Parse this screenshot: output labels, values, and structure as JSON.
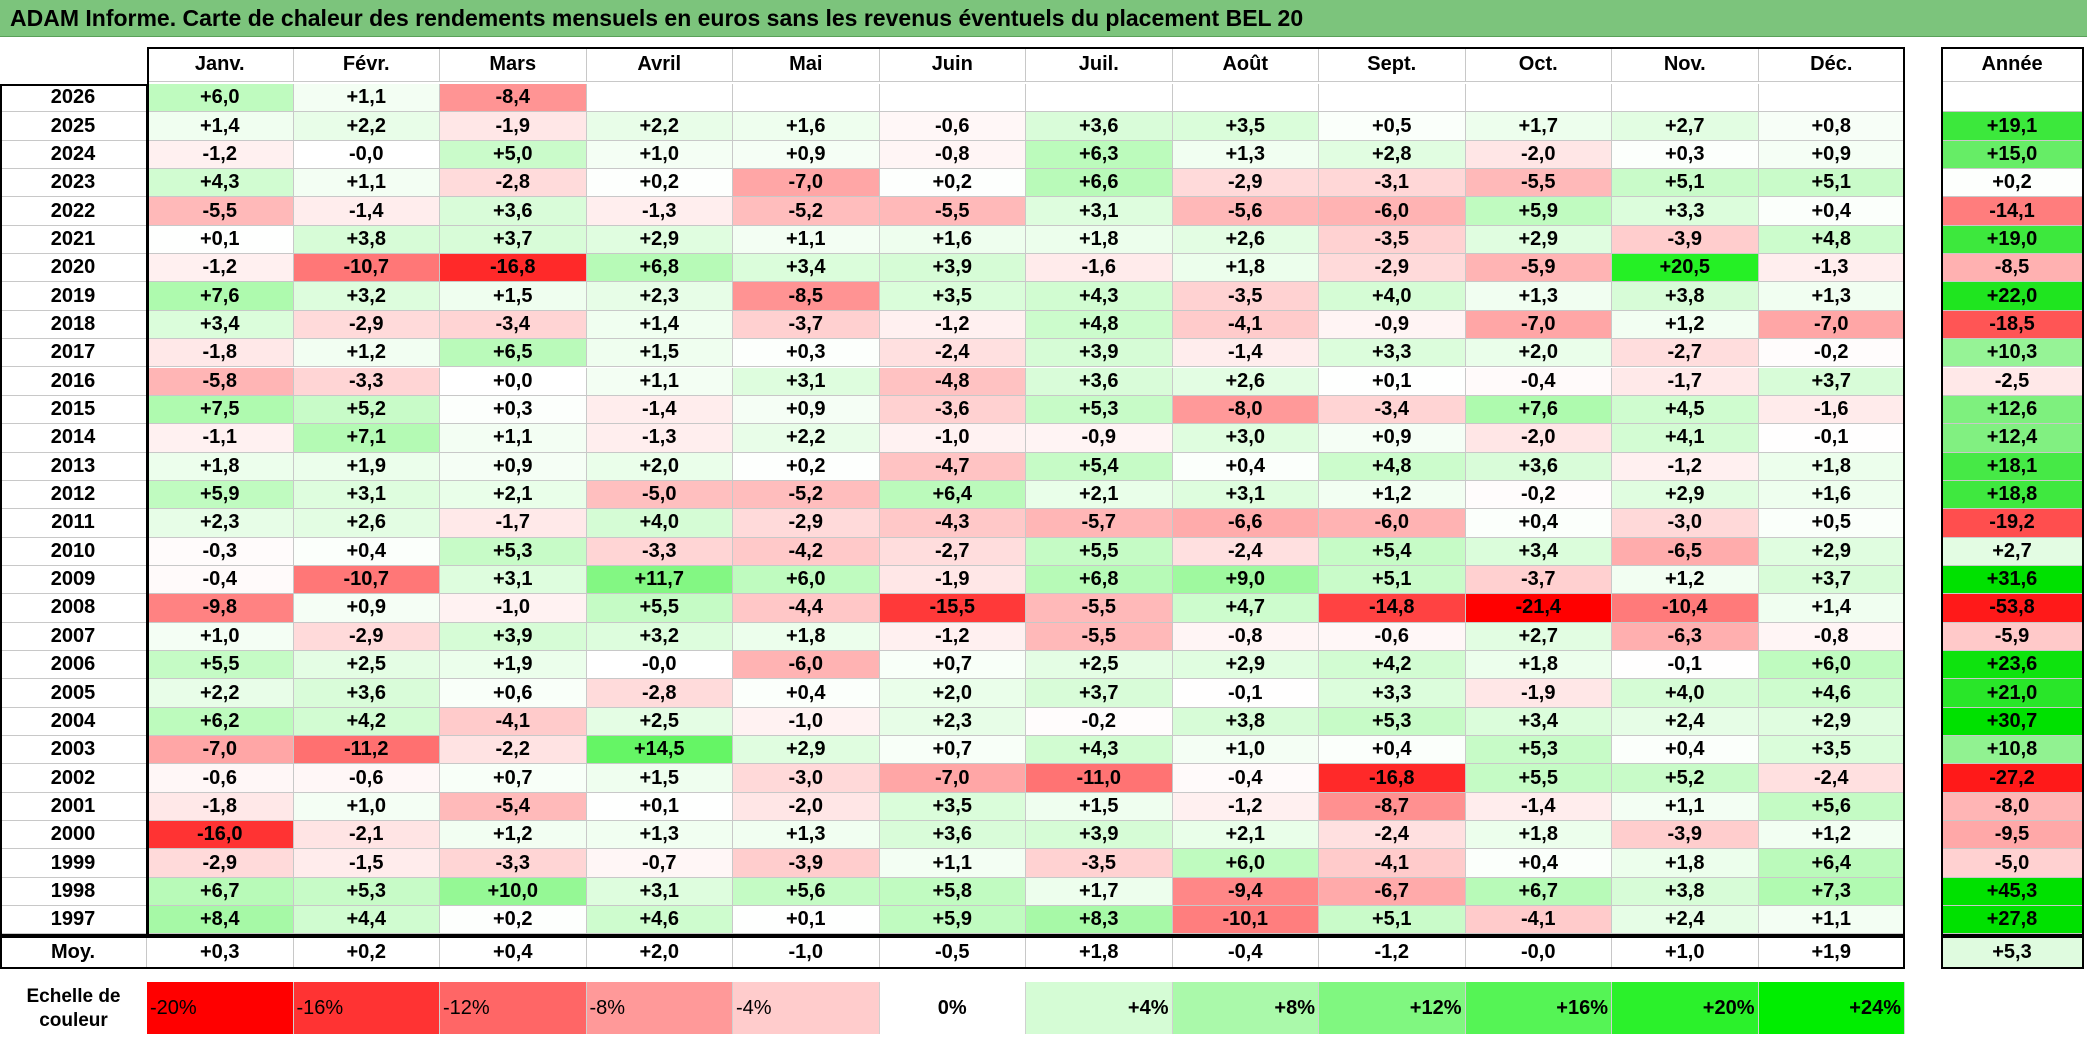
{
  "title": "ADAM Informe. Carte de chaleur des rendements mensuels en euros sans les revenus éventuels du placement BEL 20",
  "chart_data": {
    "type": "heatmap",
    "columns": [
      "Janv.",
      "Févr.",
      "Mars",
      "Avril",
      "Mai",
      "Juin",
      "Juil.",
      "Août",
      "Sept.",
      "Oct.",
      "Nov.",
      "Déc."
    ],
    "annual_header": "Année",
    "rows": [
      {
        "year": "2026",
        "values": [
          "+6,0",
          "+1,1",
          "-8,4",
          "",
          "",
          "",
          "",
          "",
          "",
          "",
          "",
          ""
        ],
        "annual": ""
      },
      {
        "year": "2025",
        "values": [
          "+1,4",
          "+2,2",
          "-1,9",
          "+2,2",
          "+1,6",
          "-0,6",
          "+3,6",
          "+3,5",
          "+0,5",
          "+1,7",
          "+2,7",
          "+0,8"
        ],
        "annual": "+19,1"
      },
      {
        "year": "2024",
        "values": [
          "-1,2",
          "-0,0",
          "+5,0",
          "+1,0",
          "+0,9",
          "-0,8",
          "+6,3",
          "+1,3",
          "+2,8",
          "-2,0",
          "+0,3",
          "+0,9"
        ],
        "annual": "+15,0"
      },
      {
        "year": "2023",
        "values": [
          "+4,3",
          "+1,1",
          "-2,8",
          "+0,2",
          "-7,0",
          "+0,2",
          "+6,6",
          "-2,9",
          "-3,1",
          "-5,5",
          "+5,1",
          "+5,1"
        ],
        "annual": "+0,2"
      },
      {
        "year": "2022",
        "values": [
          "-5,5",
          "-1,4",
          "+3,6",
          "-1,3",
          "-5,2",
          "-5,5",
          "+3,1",
          "-5,6",
          "-6,0",
          "+5,9",
          "+3,3",
          "+0,4"
        ],
        "annual": "-14,1"
      },
      {
        "year": "2021",
        "values": [
          "+0,1",
          "+3,8",
          "+3,7",
          "+2,9",
          "+1,1",
          "+1,6",
          "+1,8",
          "+2,6",
          "-3,5",
          "+2,9",
          "-3,9",
          "+4,8"
        ],
        "annual": "+19,0"
      },
      {
        "year": "2020",
        "values": [
          "-1,2",
          "-10,7",
          "-16,8",
          "+6,8",
          "+3,4",
          "+3,9",
          "-1,6",
          "+1,8",
          "-2,9",
          "-5,9",
          "+20,5",
          "-1,3"
        ],
        "annual": "-8,5"
      },
      {
        "year": "2019",
        "values": [
          "+7,6",
          "+3,2",
          "+1,5",
          "+2,3",
          "-8,5",
          "+3,5",
          "+4,3",
          "-3,5",
          "+4,0",
          "+1,3",
          "+3,8",
          "+1,3"
        ],
        "annual": "+22,0"
      },
      {
        "year": "2018",
        "values": [
          "+3,4",
          "-2,9",
          "-3,4",
          "+1,4",
          "-3,7",
          "-1,2",
          "+4,8",
          "-4,1",
          "-0,9",
          "-7,0",
          "+1,2",
          "-7,0"
        ],
        "annual": "-18,5"
      },
      {
        "year": "2017",
        "values": [
          "-1,8",
          "+1,2",
          "+6,5",
          "+1,5",
          "+0,3",
          "-2,4",
          "+3,9",
          "-1,4",
          "+3,3",
          "+2,0",
          "-2,7",
          "-0,2"
        ],
        "annual": "+10,3"
      },
      {
        "year": "2016",
        "values": [
          "-5,8",
          "-3,3",
          "+0,0",
          "+1,1",
          "+3,1",
          "-4,8",
          "+3,6",
          "+2,6",
          "+0,1",
          "-0,4",
          "-1,7",
          "+3,7"
        ],
        "annual": "-2,5"
      },
      {
        "year": "2015",
        "values": [
          "+7,5",
          "+5,2",
          "+0,3",
          "-1,4",
          "+0,9",
          "-3,6",
          "+5,3",
          "-8,0",
          "-3,4",
          "+7,6",
          "+4,5",
          "-1,6"
        ],
        "annual": "+12,6"
      },
      {
        "year": "2014",
        "values": [
          "-1,1",
          "+7,1",
          "+1,1",
          "-1,3",
          "+2,2",
          "-1,0",
          "-0,9",
          "+3,0",
          "+0,9",
          "-2,0",
          "+4,1",
          "-0,1"
        ],
        "annual": "+12,4"
      },
      {
        "year": "2013",
        "values": [
          "+1,8",
          "+1,9",
          "+0,9",
          "+2,0",
          "+0,2",
          "-4,7",
          "+5,4",
          "+0,4",
          "+4,8",
          "+3,6",
          "-1,2",
          "+1,8"
        ],
        "annual": "+18,1"
      },
      {
        "year": "2012",
        "values": [
          "+5,9",
          "+3,1",
          "+2,1",
          "-5,0",
          "-5,2",
          "+6,4",
          "+2,1",
          "+3,1",
          "+1,2",
          "-0,2",
          "+2,9",
          "+1,6"
        ],
        "annual": "+18,8"
      },
      {
        "year": "2011",
        "values": [
          "+2,3",
          "+2,6",
          "-1,7",
          "+4,0",
          "-2,9",
          "-4,3",
          "-5,7",
          "-6,6",
          "-6,0",
          "+0,4",
          "-3,0",
          "+0,5"
        ],
        "annual": "-19,2"
      },
      {
        "year": "2010",
        "values": [
          "-0,3",
          "+0,4",
          "+5,3",
          "-3,3",
          "-4,2",
          "-2,7",
          "+5,5",
          "-2,4",
          "+5,4",
          "+3,4",
          "-6,5",
          "+2,9"
        ],
        "annual": "+2,7"
      },
      {
        "year": "2009",
        "values": [
          "-0,4",
          "-10,7",
          "+3,1",
          "+11,7",
          "+6,0",
          "-1,9",
          "+6,8",
          "+9,0",
          "+5,1",
          "-3,7",
          "+1,2",
          "+3,7"
        ],
        "annual": "+31,6"
      },
      {
        "year": "2008",
        "values": [
          "-9,8",
          "+0,9",
          "-1,0",
          "+5,5",
          "-4,4",
          "-15,5",
          "-5,5",
          "+4,7",
          "-14,8",
          "-21,4",
          "-10,4",
          "+1,4"
        ],
        "annual": "-53,8"
      },
      {
        "year": "2007",
        "values": [
          "+1,0",
          "-2,9",
          "+3,9",
          "+3,2",
          "+1,8",
          "-1,2",
          "-5,5",
          "-0,8",
          "-0,6",
          "+2,7",
          "-6,3",
          "-0,8"
        ],
        "annual": "-5,9"
      },
      {
        "year": "2006",
        "values": [
          "+5,5",
          "+2,5",
          "+1,9",
          "-0,0",
          "-6,0",
          "+0,7",
          "+2,5",
          "+2,9",
          "+4,2",
          "+1,8",
          "-0,1",
          "+6,0"
        ],
        "annual": "+23,6"
      },
      {
        "year": "2005",
        "values": [
          "+2,2",
          "+3,6",
          "+0,6",
          "-2,8",
          "+0,4",
          "+2,0",
          "+3,7",
          "-0,1",
          "+3,3",
          "-1,9",
          "+4,0",
          "+4,6"
        ],
        "annual": "+21,0"
      },
      {
        "year": "2004",
        "values": [
          "+6,2",
          "+4,2",
          "-4,1",
          "+2,5",
          "-1,0",
          "+2,3",
          "-0,2",
          "+3,8",
          "+5,3",
          "+3,4",
          "+2,4",
          "+2,9"
        ],
        "annual": "+30,7"
      },
      {
        "year": "2003",
        "values": [
          "-7,0",
          "-11,2",
          "-2,2",
          "+14,5",
          "+2,9",
          "+0,7",
          "+4,3",
          "+1,0",
          "+0,4",
          "+5,3",
          "+0,4",
          "+3,5"
        ],
        "annual": "+10,8"
      },
      {
        "year": "2002",
        "values": [
          "-0,6",
          "-0,6",
          "+0,7",
          "+1,5",
          "-3,0",
          "-7,0",
          "-11,0",
          "-0,4",
          "-16,8",
          "+5,5",
          "+5,2",
          "-2,4"
        ],
        "annual": "-27,2"
      },
      {
        "year": "2001",
        "values": [
          "-1,8",
          "+1,0",
          "-5,4",
          "+0,1",
          "-2,0",
          "+3,5",
          "+1,5",
          "-1,2",
          "-8,7",
          "-1,4",
          "+1,1",
          "+5,6"
        ],
        "annual": "-8,0"
      },
      {
        "year": "2000",
        "values": [
          "-16,0",
          "-2,1",
          "+1,2",
          "+1,3",
          "+1,3",
          "+3,6",
          "+3,9",
          "+2,1",
          "-2,4",
          "+1,8",
          "-3,9",
          "+1,2"
        ],
        "annual": "-9,5"
      },
      {
        "year": "1999",
        "values": [
          "-2,9",
          "-1,5",
          "-3,3",
          "-0,7",
          "-3,9",
          "+1,1",
          "-3,5",
          "+6,0",
          "-4,1",
          "+0,4",
          "+1,8",
          "+6,4"
        ],
        "annual": "-5,0"
      },
      {
        "year": "1998",
        "values": [
          "+6,7",
          "+5,3",
          "+10,0",
          "+3,1",
          "+5,6",
          "+5,8",
          "+1,7",
          "-9,4",
          "-6,7",
          "+6,7",
          "+3,8",
          "+7,3"
        ],
        "annual": "+45,3"
      },
      {
        "year": "1997",
        "values": [
          "+8,4",
          "+4,4",
          "+0,2",
          "+4,6",
          "+0,1",
          "+5,9",
          "+8,3",
          "-10,1",
          "+5,1",
          "-4,1",
          "+2,4",
          "+1,1"
        ],
        "annual": "+27,8"
      }
    ],
    "average": {
      "label": "Moy.",
      "values": [
        "+0,3",
        "+0,2",
        "+0,4",
        "+2,0",
        "-1,0",
        "-0,5",
        "+1,8",
        "-0,4",
        "-1,2",
        "-0,0",
        "+1,0",
        "+1,9"
      ],
      "annual": "+5,3"
    },
    "color_scale": {
      "label": "Echelle de couleur",
      "stops": [
        {
          "label": "-20%",
          "value": -20
        },
        {
          "label": "-16%",
          "value": -16
        },
        {
          "label": "-12%",
          "value": -12
        },
        {
          "label": "-8%",
          "value": -8
        },
        {
          "label": "-4%",
          "value": -4
        },
        {
          "label": "0%",
          "value": 0
        },
        {
          "label": "+4%",
          "value": 4
        },
        {
          "label": "+8%",
          "value": 8
        },
        {
          "label": "+12%",
          "value": 12
        },
        {
          "label": "+16%",
          "value": 16
        },
        {
          "label": "+20%",
          "value": 20
        },
        {
          "label": "+24%",
          "value": 24
        }
      ],
      "negative_color": "#ff0000",
      "positive_color": "#00ee00",
      "neutral_color": "#ffffff"
    }
  }
}
